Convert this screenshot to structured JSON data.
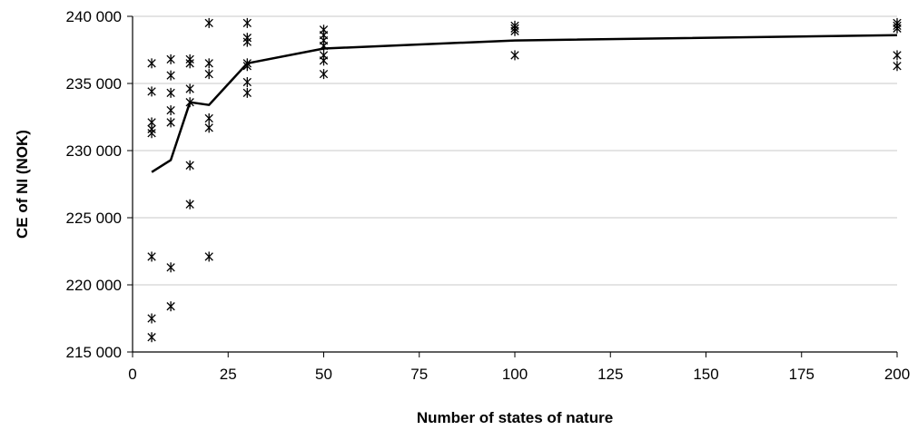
{
  "chart_data": {
    "type": "scatter",
    "title": "",
    "xlabel": "Number of states of nature",
    "ylabel": "CE of NI (NOK)",
    "xlim": [
      0,
      200
    ],
    "ylim": [
      215000,
      240000
    ],
    "x_ticks": [
      0,
      25,
      50,
      75,
      100,
      125,
      150,
      175,
      200
    ],
    "x_tick_labels": [
      "0",
      "25",
      "50",
      "75",
      "100",
      "125",
      "150",
      "175",
      "200"
    ],
    "y_ticks": [
      215000,
      220000,
      225000,
      230000,
      235000,
      240000
    ],
    "y_tick_labels": [
      "215 000",
      "220 000",
      "225 000",
      "230 000",
      "235 000",
      "240 000"
    ],
    "grid": "horizontal",
    "legend": "none",
    "series": [
      {
        "kind": "scatter",
        "marker": "star",
        "points": [
          [
            5,
            236500
          ],
          [
            5,
            234400
          ],
          [
            5,
            232100
          ],
          [
            5,
            231600
          ],
          [
            5,
            231300
          ],
          [
            5,
            222100
          ],
          [
            5,
            217500
          ],
          [
            5,
            216100
          ],
          [
            10,
            236800
          ],
          [
            10,
            235600
          ],
          [
            10,
            234300
          ],
          [
            10,
            233000
          ],
          [
            10,
            232100
          ],
          [
            10,
            221300
          ],
          [
            10,
            218400
          ],
          [
            15,
            236800
          ],
          [
            15,
            236500
          ],
          [
            15,
            234600
          ],
          [
            15,
            233600
          ],
          [
            15,
            228900
          ],
          [
            15,
            226000
          ],
          [
            20,
            239500
          ],
          [
            20,
            236500
          ],
          [
            20,
            235700
          ],
          [
            20,
            232400
          ],
          [
            20,
            231700
          ],
          [
            20,
            222100
          ],
          [
            30,
            239500
          ],
          [
            30,
            238400
          ],
          [
            30,
            238100
          ],
          [
            30,
            236500
          ],
          [
            30,
            236300
          ],
          [
            30,
            235100
          ],
          [
            30,
            234300
          ],
          [
            50,
            239000
          ],
          [
            50,
            238600
          ],
          [
            50,
            238200
          ],
          [
            50,
            237800
          ],
          [
            50,
            237100
          ],
          [
            50,
            236700
          ],
          [
            50,
            235700
          ],
          [
            100,
            239300
          ],
          [
            100,
            239100
          ],
          [
            100,
            238900
          ],
          [
            100,
            237100
          ],
          [
            200,
            239500
          ],
          [
            200,
            239300
          ],
          [
            200,
            239100
          ],
          [
            200,
            237100
          ],
          [
            200,
            236300
          ]
        ]
      },
      {
        "kind": "line",
        "x": [
          5,
          10,
          15,
          20,
          30,
          50,
          100,
          200
        ],
        "y": [
          228400,
          229300,
          233600,
          233400,
          236500,
          237600,
          238200,
          238600
        ]
      }
    ]
  }
}
